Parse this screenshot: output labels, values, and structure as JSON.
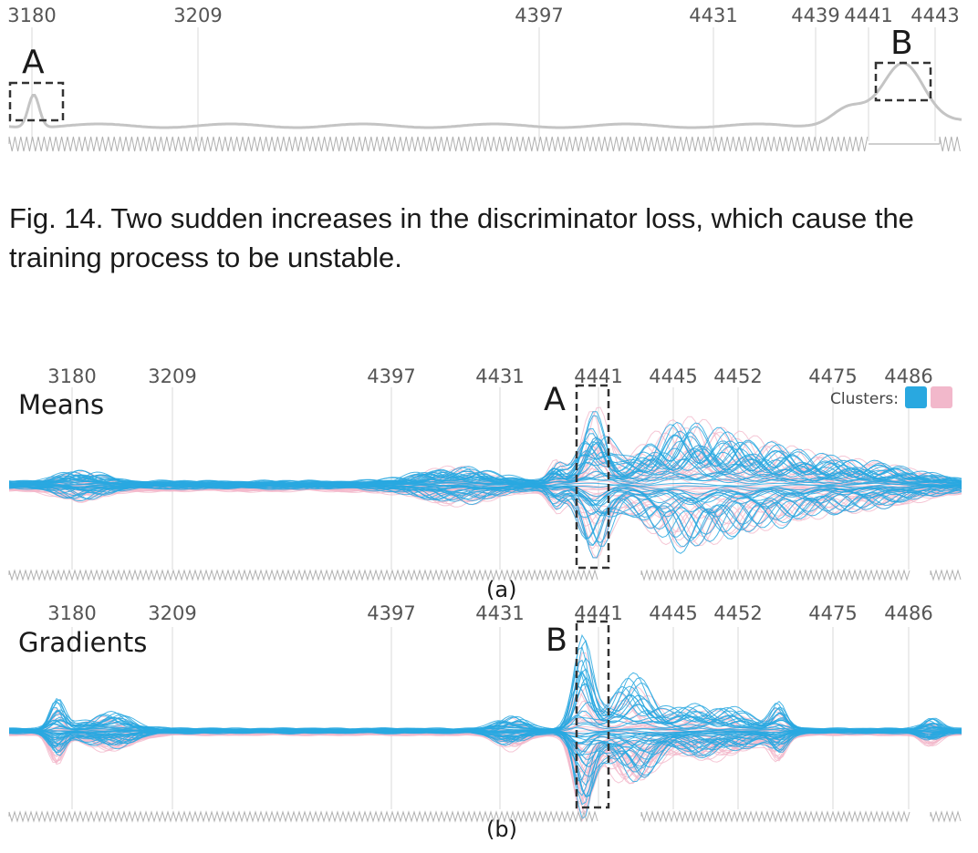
{
  "caption": "Fig. 14. Two sudden increases in the discriminator loss, which cause the training process to be unstable.",
  "top_plot": {
    "ticks": [
      "3180",
      "3209",
      "4397",
      "4431",
      "4439",
      "4441",
      "4443"
    ],
    "annotations": [
      "A",
      "B"
    ]
  },
  "panel_a": {
    "title": "Means",
    "ticks": [
      "3180",
      "3209",
      "4397",
      "4431",
      "4441",
      "4445",
      "4452",
      "4475",
      "4486"
    ],
    "annotation": "A",
    "sublabel": "(a)",
    "legend_label": "Clusters:"
  },
  "panel_b": {
    "title": "Gradients",
    "ticks": [
      "3180",
      "3209",
      "4397",
      "4431",
      "4441",
      "4445",
      "4452",
      "4475",
      "4486"
    ],
    "annotation": "B",
    "sublabel": "(b)"
  },
  "colors": {
    "cluster_blue": "#29a8e0",
    "cluster_pink": "#f2b8cb",
    "loss_line": "#c4c4c4",
    "grid": "#e6e6e6"
  }
}
